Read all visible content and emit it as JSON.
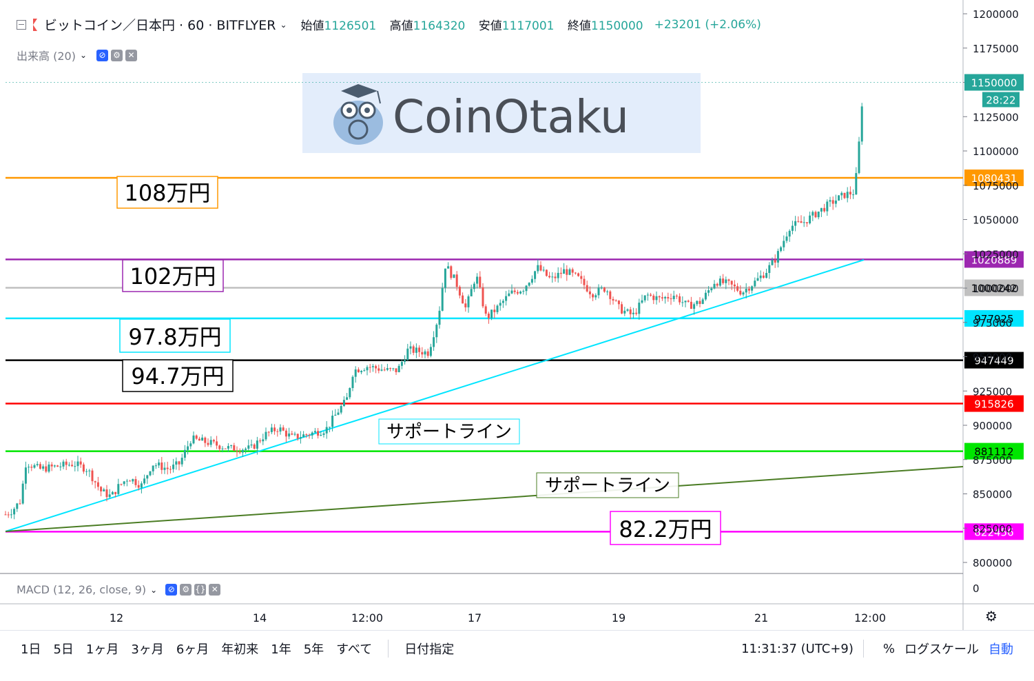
{
  "header": {
    "symbol": "ビットコイン／日本円 · 60 · BITFLYER",
    "open_label": "始値",
    "open": "1126501",
    "high_label": "高値",
    "high": "1164320",
    "low_label": "安値",
    "low": "1117001",
    "close_label": "終値",
    "close": "1150000",
    "change": "+23201 (+2.06%)"
  },
  "indicators": {
    "volume": "出来高 (20)",
    "macd": "MACD (12, 26, close, 9)"
  },
  "watermark": "CoinOtaku",
  "price_axis": {
    "ticks": [
      "1200000",
      "1175000",
      "1150000",
      "1125000",
      "1100000",
      "1075000",
      "1050000",
      "1025000",
      "1000000",
      "975000",
      "950000",
      "925000",
      "900000",
      "875000",
      "850000",
      "825000",
      "800000"
    ],
    "current_price": "1150000",
    "countdown": "28:22",
    "macd_zero": "0"
  },
  "time_axis": {
    "ticks": [
      "12",
      "14",
      "12:00",
      "17",
      "19",
      "21",
      "12:00"
    ]
  },
  "levels": [
    {
      "value": 1080431,
      "label": "1080431",
      "color": "#ff9800",
      "note": "108万円"
    },
    {
      "value": 1020889,
      "label": "1020889",
      "color": "#9c27b0",
      "note": "102万円"
    },
    {
      "value": 1000242,
      "label": "1000242",
      "color": "#c0c0c0",
      "note": ""
    },
    {
      "value": 977925,
      "label": "977925",
      "color": "#00e5ff",
      "note": "97.8万円"
    },
    {
      "value": 947449,
      "label": "947449",
      "color": "#000000",
      "note": "94.7万円"
    },
    {
      "value": 915826,
      "label": "915826",
      "color": "#ff0000",
      "note": "915826"
    },
    {
      "value": 881112,
      "label": "881112",
      "color": "#00e600",
      "note": ""
    },
    {
      "value": 822456,
      "label": "822456",
      "color": "#ff00ff",
      "note": "82.2万円"
    }
  ],
  "support_labels": [
    "サポートライン",
    "サポートライン"
  ],
  "chart_data": {
    "type": "candlestick",
    "ylim": [
      790000,
      1205000
    ],
    "y_ticks": [
      800000,
      825000,
      850000,
      875000,
      900000,
      925000,
      950000,
      975000,
      1000000,
      1025000,
      1050000,
      1075000,
      1100000,
      1125000,
      1150000,
      1175000,
      1200000
    ],
    "x_ticks": [
      "12",
      "14",
      "12:00",
      "17",
      "19",
      "21",
      "12:00"
    ],
    "last_price": 1150000,
    "trendlines": [
      {
        "name": "サポートライン",
        "color": "#00e5ff",
        "from": [
          0,
          822456
        ],
        "to": [
          1,
          1020889
        ]
      },
      {
        "name": "サポートライン",
        "color": "#4a7c23",
        "from": [
          0,
          822456
        ],
        "to": [
          1,
          870000
        ]
      }
    ],
    "path": [
      [
        0,
        835000
      ],
      [
        0.01,
        838000
      ],
      [
        0.022,
        845000
      ],
      [
        0.03,
        873000
      ],
      [
        0.05,
        868000
      ],
      [
        0.075,
        870000
      ],
      [
        0.1,
        872000
      ],
      [
        0.12,
        868000
      ],
      [
        0.14,
        852000
      ],
      [
        0.155,
        848000
      ],
      [
        0.165,
        855000
      ],
      [
        0.18,
        862000
      ],
      [
        0.2,
        856000
      ],
      [
        0.215,
        872000
      ],
      [
        0.24,
        868000
      ],
      [
        0.255,
        872000
      ],
      [
        0.272,
        890000
      ],
      [
        0.3,
        887000
      ],
      [
        0.33,
        883000
      ],
      [
        0.36,
        883000
      ],
      [
        0.38,
        893000
      ],
      [
        0.4,
        898000
      ],
      [
        0.42,
        891000
      ],
      [
        0.44,
        893000
      ],
      [
        0.47,
        897000
      ],
      [
        0.49,
        912000
      ],
      [
        0.5,
        918000
      ],
      [
        0.51,
        940000
      ],
      [
        0.53,
        943000
      ],
      [
        0.56,
        940000
      ],
      [
        0.575,
        940000
      ],
      [
        0.59,
        955000
      ],
      [
        0.62,
        953000
      ],
      [
        0.635,
        980000
      ],
      [
        0.645,
        1017000
      ],
      [
        0.66,
        1005000
      ],
      [
        0.675,
        985000
      ],
      [
        0.69,
        1010000
      ],
      [
        0.705,
        978000
      ],
      [
        0.72,
        985000
      ],
      [
        0.74,
        996000
      ],
      [
        0.76,
        1000000
      ],
      [
        0.78,
        1015000
      ],
      [
        0.8,
        1006000
      ],
      [
        0.82,
        1013000
      ],
      [
        0.84,
        1007000
      ],
      [
        0.86,
        996000
      ],
      [
        0.88,
        1000000
      ],
      [
        0.9,
        985000
      ],
      [
        0.92,
        980000
      ],
      [
        0.94,
        995000
      ],
      [
        0.96,
        992000
      ],
      [
        0.98,
        995000
      ],
      [
        1.0,
        987000
      ],
      [
        1.02,
        990000
      ],
      [
        1.04,
        1005000
      ],
      [
        1.06,
        1003000
      ],
      [
        1.08,
        997000
      ],
      [
        1.1,
        1005000
      ],
      [
        1.115,
        1012000
      ],
      [
        1.13,
        1022000
      ],
      [
        1.15,
        1045000
      ],
      [
        1.17,
        1048000
      ],
      [
        1.19,
        1055000
      ],
      [
        1.21,
        1062000
      ],
      [
        1.23,
        1068000
      ],
      [
        1.245,
        1070000
      ],
      [
        1.25,
        1095000
      ],
      [
        1.258,
        1150000
      ]
    ]
  },
  "bottom_bar": {
    "ranges": [
      "1日",
      "5日",
      "1ヶ月",
      "3ヶ月",
      "6ヶ月",
      "年初来",
      "1年",
      "5年",
      "すべて"
    ],
    "date_range": "日付指定",
    "clock": "11:31:37 (UTC+9)",
    "percent": "%",
    "log": "ログスケール",
    "auto": "自動"
  }
}
